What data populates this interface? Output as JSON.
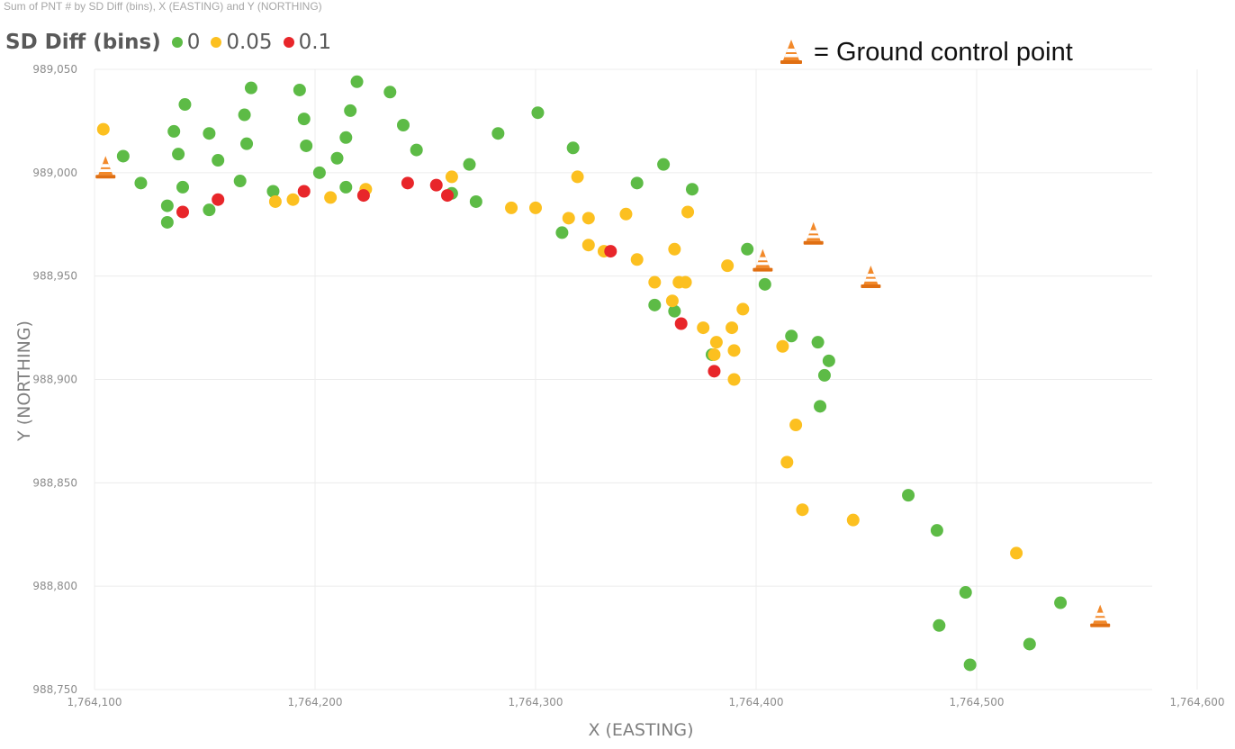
{
  "chart_data": {
    "type": "scatter",
    "title": "Sum of PNT # by SD Diff (bins), X (EASTING) and Y (NORTHING)",
    "legend": {
      "title": "SD Diff (bins)",
      "position": "top-left",
      "entries": [
        {
          "label": "0",
          "color": "#5dbb46"
        },
        {
          "label": "0.05",
          "color": "#fcc020"
        },
        {
          "label": "0.1",
          "color": "#e8262a"
        }
      ]
    },
    "annotation": {
      "text": "= Ground control point",
      "icon": "traffic-cone-icon"
    },
    "xlabel": "X (EASTING)",
    "ylabel": "Y (NORTHING)",
    "xlim": [
      1764100,
      1764600
    ],
    "ylim": [
      988750,
      989050
    ],
    "grid": true,
    "xticks": [
      {
        "value": 1764100,
        "label": "1,764,100"
      },
      {
        "value": 1764200,
        "label": "1,764,200"
      },
      {
        "value": 1764300,
        "label": "1,764,300"
      },
      {
        "value": 1764400,
        "label": "1,764,400"
      },
      {
        "value": 1764500,
        "label": "1,764,500"
      },
      {
        "value": 1764600,
        "label": "1,764,600"
      }
    ],
    "yticks": [
      {
        "value": 989050,
        "label": "989,050"
      },
      {
        "value": 989000,
        "label": "989,000"
      },
      {
        "value": 988950,
        "label": "988,950"
      },
      {
        "value": 988900,
        "label": "988,900"
      },
      {
        "value": 988850,
        "label": "988,850"
      },
      {
        "value": 988800,
        "label": "988,800"
      },
      {
        "value": 988750,
        "label": "988,750"
      }
    ],
    "series": [
      {
        "name": "0",
        "color": "#5dbb46",
        "points": [
          [
            1764113,
            989008
          ],
          [
            1764121,
            988995
          ],
          [
            1764133,
            988984
          ],
          [
            1764133,
            988976
          ],
          [
            1764136,
            989020
          ],
          [
            1764138,
            989009
          ],
          [
            1764140,
            988993
          ],
          [
            1764141,
            989033
          ],
          [
            1764152,
            988982
          ],
          [
            1764152,
            989019
          ],
          [
            1764156,
            989006
          ],
          [
            1764166,
            988996
          ],
          [
            1764168,
            989028
          ],
          [
            1764169,
            989014
          ],
          [
            1764171,
            989041
          ],
          [
            1764181,
            988991
          ],
          [
            1764193,
            989040
          ],
          [
            1764195,
            989026
          ],
          [
            1764196,
            989013
          ],
          [
            1764202,
            989000
          ],
          [
            1764210,
            989007
          ],
          [
            1764214,
            988993
          ],
          [
            1764214,
            989017
          ],
          [
            1764216,
            989030
          ],
          [
            1764219,
            989044
          ],
          [
            1764234,
            989039
          ],
          [
            1764240,
            989023
          ],
          [
            1764246,
            989011
          ],
          [
            1764262,
            988990
          ],
          [
            1764270,
            989004
          ],
          [
            1764273,
            988986
          ],
          [
            1764283,
            989019
          ],
          [
            1764301,
            989029
          ],
          [
            1764312,
            988971
          ],
          [
            1764317,
            989012
          ],
          [
            1764346,
            988995
          ],
          [
            1764354,
            988936
          ],
          [
            1764358,
            989004
          ],
          [
            1764363,
            988933
          ],
          [
            1764371,
            988992
          ],
          [
            1764380,
            988912
          ],
          [
            1764396,
            988963
          ],
          [
            1764404,
            988946
          ],
          [
            1764416,
            988921
          ],
          [
            1764428,
            988918
          ],
          [
            1764429,
            988887
          ],
          [
            1764431,
            988902
          ],
          [
            1764433,
            988909
          ],
          [
            1764469,
            988844
          ],
          [
            1764482,
            988827
          ],
          [
            1764483,
            988781
          ],
          [
            1764495,
            988797
          ],
          [
            1764497,
            988762
          ],
          [
            1764524,
            988772
          ],
          [
            1764538,
            988792
          ]
        ]
      },
      {
        "name": "0.05",
        "color": "#fcc020",
        "points": [
          [
            1764104,
            989021
          ],
          [
            1764182,
            988986
          ],
          [
            1764190,
            988987
          ],
          [
            1764207,
            988988
          ],
          [
            1764223,
            988992
          ],
          [
            1764262,
            988998
          ],
          [
            1764289,
            988983
          ],
          [
            1764300,
            988983
          ],
          [
            1764315,
            988978
          ],
          [
            1764319,
            988998
          ],
          [
            1764324,
            988965
          ],
          [
            1764324,
            988978
          ],
          [
            1764331,
            988962
          ],
          [
            1764341,
            988980
          ],
          [
            1764346,
            988958
          ],
          [
            1764354,
            988947
          ],
          [
            1764362,
            988938
          ],
          [
            1764363,
            988963
          ],
          [
            1764365,
            988947
          ],
          [
            1764369,
            988981
          ],
          [
            1764368,
            988947
          ],
          [
            1764376,
            988925
          ],
          [
            1764381,
            988912
          ],
          [
            1764382,
            988918
          ],
          [
            1764387,
            988955
          ],
          [
            1764389,
            988925
          ],
          [
            1764390,
            988900
          ],
          [
            1764390,
            988914
          ],
          [
            1764394,
            988934
          ],
          [
            1764412,
            988916
          ],
          [
            1764414,
            988860
          ],
          [
            1764418,
            988878
          ],
          [
            1764421,
            988837
          ],
          [
            1764444,
            988832
          ],
          [
            1764518,
            988816
          ]
        ]
      },
      {
        "name": "0.1",
        "color": "#e8262a",
        "points": [
          [
            1764140,
            988981
          ],
          [
            1764156,
            988987
          ],
          [
            1764195,
            988991
          ],
          [
            1764222,
            988989
          ],
          [
            1764242,
            988995
          ],
          [
            1764255,
            988994
          ],
          [
            1764260,
            988989
          ],
          [
            1764334,
            988962
          ],
          [
            1764366,
            988927
          ],
          [
            1764381,
            988904
          ]
        ]
      }
    ],
    "ground_control_points": [
      [
        1764105,
        989002
      ],
      [
        1764403,
        988957
      ],
      [
        1764426,
        988970
      ],
      [
        1764452,
        988949
      ],
      [
        1764556,
        988785
      ]
    ]
  }
}
